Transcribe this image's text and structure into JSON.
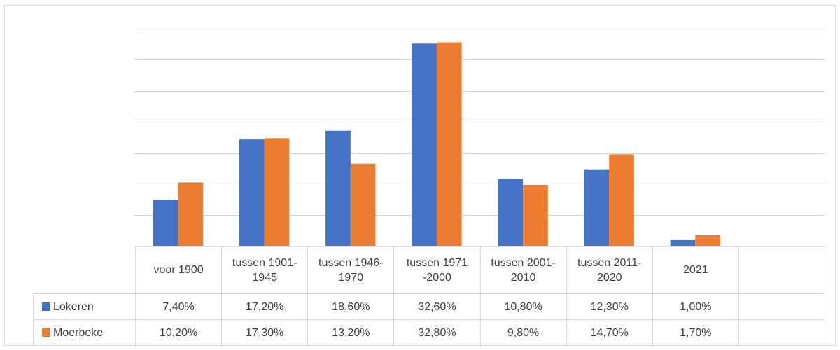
{
  "chart_data": {
    "type": "bar",
    "categories": [
      "voor 1900",
      "tussen 1901-1945",
      "tussen 1946-1970",
      "tussen 1971 -2000",
      "tussen 2001-2010",
      "tussen 2011-2020",
      "2021",
      null
    ],
    "series": [
      {
        "name": "Lokeren",
        "color": "#4472c4",
        "values": [
          7.4,
          17.2,
          18.6,
          32.6,
          10.8,
          12.3,
          1.0,
          null
        ],
        "value_labels": [
          "7,40%",
          "17,20%",
          "18,60%",
          "32,60%",
          "10,80%",
          "12,30%",
          "1,00%",
          null
        ]
      },
      {
        "name": "Moerbeke",
        "color": "#ed7d31",
        "values": [
          10.2,
          17.3,
          13.2,
          32.8,
          9.8,
          14.7,
          1.7,
          null
        ],
        "value_labels": [
          "10,20%",
          "17,30%",
          "13,20%",
          "32,80%",
          "9,80%",
          "14,70%",
          "1,70%",
          null
        ]
      }
    ],
    "ylim": [
      0,
      35
    ],
    "yticks": [
      0,
      5,
      10,
      15,
      20,
      25,
      30,
      35
    ],
    "grid": true,
    "data_table": true
  }
}
